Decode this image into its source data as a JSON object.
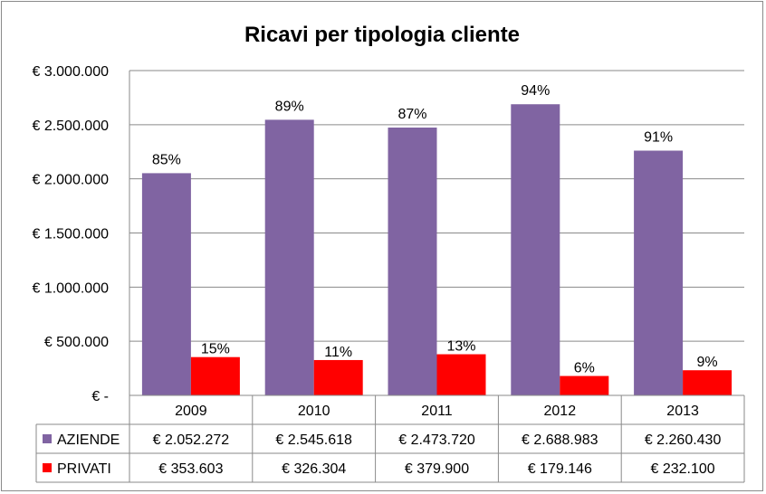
{
  "chart_data": {
    "type": "bar",
    "title": "Ricavi per tipologia cliente",
    "categories": [
      "2009",
      "2010",
      "2011",
      "2012",
      "2013"
    ],
    "ylim": [
      0,
      3000000
    ],
    "yticks": [
      0,
      500000,
      1000000,
      1500000,
      2000000,
      2500000,
      3000000
    ],
    "ytick_labels": [
      "€ -",
      "€ 500.000",
      "€ 1.000.000",
      "€ 1.500.000",
      "€ 2.000.000",
      "€ 2.500.000",
      "€ 3.000.000"
    ],
    "grid": true,
    "legend": "data-table",
    "series": [
      {
        "name": "AZIENDE",
        "color": "#8064a2",
        "values": [
          2052272,
          2545618,
          2473720,
          2688983,
          2260430
        ],
        "value_labels": [
          "€ 2.052.272",
          "€ 2.545.618",
          "€ 2.473.720",
          "€ 2.688.983",
          "€ 2.260.430"
        ],
        "data_labels": [
          "85%",
          "89%",
          "87%",
          "94%",
          "91%"
        ]
      },
      {
        "name": "PRIVATI",
        "color": "#ff0000",
        "values": [
          353603,
          326304,
          379900,
          179146,
          232100
        ],
        "value_labels": [
          "€ 353.603",
          "€ 326.304",
          "€ 379.900",
          "€ 179.146",
          "€ 232.100"
        ],
        "data_labels": [
          "15%",
          "11%",
          "13%",
          "6%",
          "9%"
        ]
      }
    ]
  }
}
